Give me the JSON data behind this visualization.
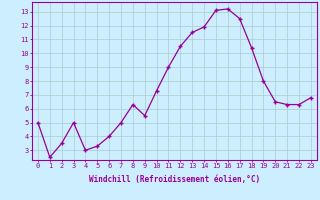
{
  "x": [
    0,
    1,
    2,
    3,
    4,
    5,
    6,
    7,
    8,
    9,
    10,
    11,
    12,
    13,
    14,
    15,
    16,
    17,
    18,
    19,
    20,
    21,
    22,
    23
  ],
  "y": [
    5.0,
    2.5,
    3.5,
    5.0,
    3.0,
    3.3,
    4.0,
    5.0,
    6.3,
    5.5,
    7.3,
    9.0,
    10.5,
    11.5,
    11.9,
    13.1,
    13.2,
    12.5,
    10.4,
    8.0,
    6.5,
    6.3,
    6.3,
    6.8
  ],
  "line_color": "#990099",
  "marker": "+",
  "bg_color": "#cceeff",
  "grid_color": "#aacccc",
  "xlabel": "Windchill (Refroidissement éolien,°C)",
  "ylabel_ticks": [
    3,
    4,
    5,
    6,
    7,
    8,
    9,
    10,
    11,
    12,
    13
  ],
  "ylim": [
    2.3,
    13.7
  ],
  "xlim": [
    -0.5,
    23.5
  ],
  "label_color": "#990099",
  "tick_color": "#990099",
  "spine_color": "#990099",
  "xlabel_fontsize": 5.5,
  "tick_fontsize": 5.0,
  "marker_size": 3.5,
  "linewidth": 0.9
}
